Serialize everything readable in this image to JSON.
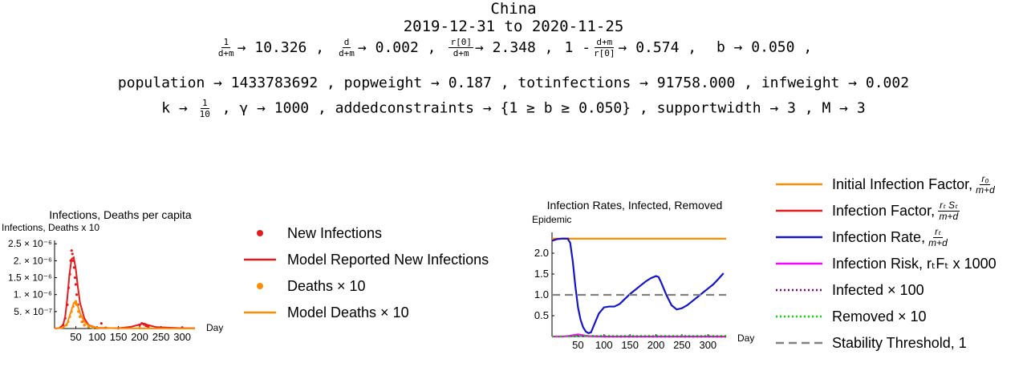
{
  "header": {
    "country": "China",
    "date_range": "2019-12-31 to 2020-11-25"
  },
  "params": {
    "line1": [
      {
        "num": "1",
        "den": "d+m",
        "val": "10.326"
      },
      {
        "num": "d",
        "den": "d+m",
        "val": "0.002"
      },
      {
        "num": "r[0]",
        "den": "d+m",
        "val": "2.348"
      },
      {
        "prefix": "1 -",
        "num": "d+m",
        "den": "r[0]",
        "val": "0.574"
      }
    ],
    "b": "b → 0.050",
    "line2": "population → 1433783692 ,  popweight → 0.187 ,  totinfections → 91758.000 ,  infweight → 0.002",
    "k_prefix": "k →",
    "k_num": "1",
    "k_den": "10",
    "line3_rest": ",  γ → 1000 ,  addedconstraints → {1 ≥ b ≥ 0.050} ,  supportwidth → 3 ,  M → 3"
  },
  "chart_data": [
    {
      "type": "scatter",
      "title": "Infections, Deaths per capita",
      "ylabel": "Infections, Deaths x 10",
      "xlabel": "Day",
      "xlim": [
        0,
        330
      ],
      "ylim": [
        0,
        2.6e-06
      ],
      "x_ticks": [
        50,
        100,
        150,
        200,
        250,
        300
      ],
      "y_ticks": [
        {
          "value": 5e-07,
          "label": "5. × 10⁻⁷"
        },
        {
          "value": 1e-06,
          "label": "1. × 10⁻⁶"
        },
        {
          "value": 1.5e-06,
          "label": "1.5 × 10⁻⁶"
        },
        {
          "value": 2e-06,
          "label": "2. × 10⁻⁶"
        },
        {
          "value": 2.5e-06,
          "label": "2.5 × 10⁻⁶"
        }
      ],
      "series": [
        {
          "name": "New Infections",
          "color": "#e41a1c",
          "kind": "points",
          "x": [
            20,
            25,
            30,
            33,
            36,
            38,
            40,
            42,
            44,
            46,
            48,
            50,
            52,
            55,
            58,
            60,
            65,
            70,
            80,
            90,
            100,
            110,
            120,
            150,
            200,
            205,
            210,
            215,
            220,
            250,
            300
          ],
          "y": [
            1e-07,
            3e-07,
            7e-07,
            1.2e-06,
            1.6e-06,
            2e-06,
            2.3e-06,
            2.2e-06,
            2e-06,
            1.8e-06,
            1.5e-06,
            1.3e-06,
            1e-06,
            7e-07,
            5e-07,
            3.5e-07,
            2e-07,
            1e-07,
            5e-08,
            2e-08,
            1e-08,
            1.5e-07,
            2e-08,
            1e-08,
            1e-07,
            1.5e-07,
            1.2e-07,
            8e-08,
            5e-08,
            2e-08,
            2e-08
          ]
        },
        {
          "name": "Model Reported New Infections",
          "color": "#e41a1c",
          "kind": "line",
          "x": [
            0,
            10,
            20,
            25,
            30,
            35,
            40,
            45,
            50,
            55,
            60,
            70,
            80,
            100,
            150,
            180,
            200,
            210,
            220,
            240,
            300,
            330
          ],
          "y": [
            0,
            1e-08,
            1e-07,
            3.5e-07,
            9e-07,
            1.6e-06,
            2.05e-06,
            2.1e-06,
            1.75e-06,
            1.2e-06,
            7.5e-07,
            3e-07,
            1e-07,
            2e-08,
            1e-08,
            5e-08,
            1.2e-07,
            1.5e-07,
            1e-07,
            4e-08,
            1e-08,
            1e-08
          ]
        },
        {
          "name": "Deaths × 10",
          "color": "#ff8c00",
          "kind": "points",
          "x": [
            28,
            32,
            36,
            40,
            44,
            48,
            50,
            52,
            56,
            60,
            64,
            70,
            80,
            90,
            100,
            200
          ],
          "y": [
            1e-07,
            2e-07,
            3.5e-07,
            5e-07,
            6.5e-07,
            7.5e-07,
            8e-07,
            7e-07,
            5e-07,
            3.5e-07,
            2e-07,
            1e-07,
            5e-08,
            2e-08,
            1e-08,
            1e-08
          ]
        },
        {
          "name": "Model Deaths × 10",
          "color": "#ff8c00",
          "kind": "line",
          "x": [
            0,
            20,
            30,
            35,
            40,
            45,
            50,
            55,
            60,
            70,
            80,
            100,
            150,
            330
          ],
          "y": [
            0,
            2e-08,
            1.5e-07,
            3.5e-07,
            5.5e-07,
            7.5e-07,
            8e-07,
            6.5e-07,
            4.5e-07,
            2e-07,
            8e-08,
            2e-08,
            5e-09,
            0.0
          ]
        }
      ],
      "legend": [
        {
          "name": "New Infections",
          "kind": "point",
          "color": "#e41a1c"
        },
        {
          "name": "Model Reported New Infections",
          "kind": "line",
          "color": "#e41a1c"
        },
        {
          "name": "Deaths × 10",
          "kind": "point",
          "color": "#ff8c00"
        },
        {
          "name": "Model Deaths × 10",
          "kind": "line",
          "color": "#ff8c00"
        }
      ]
    },
    {
      "type": "line",
      "title": "Infection Rates, Infected, Removed",
      "ylabel": "Epidemic",
      "xlabel": "Day",
      "xlim": [
        0,
        335
      ],
      "ylim": [
        0,
        2.5
      ],
      "x_ticks": [
        50,
        100,
        150,
        200,
        250,
        300
      ],
      "y_ticks": [
        0.5,
        1.0,
        1.5,
        2.0
      ],
      "series": [
        {
          "name": "Initial Infection Factor",
          "color": "#ff8c00",
          "dash": "",
          "x": [
            0,
            335
          ],
          "y": [
            2.348,
            2.348
          ]
        },
        {
          "name": "Infection Factor",
          "color": "#e41a1c",
          "dash": "",
          "x": [
            0,
            10,
            20,
            30,
            33
          ],
          "y": [
            2.3,
            2.34,
            2.35,
            2.35,
            2.35
          ]
        },
        {
          "name": "Infection Rate",
          "color": "#1414c8",
          "dash": "",
          "x": [
            0,
            10,
            20,
            30,
            35,
            40,
            45,
            50,
            55,
            60,
            65,
            70,
            75,
            80,
            90,
            100,
            110,
            120,
            130,
            140,
            150,
            160,
            170,
            180,
            190,
            200,
            205,
            210,
            220,
            230,
            240,
            250,
            260,
            270,
            280,
            290,
            300,
            310,
            320,
            330
          ],
          "y": [
            2.3,
            2.34,
            2.35,
            2.35,
            2.25,
            1.8,
            1.2,
            0.7,
            0.4,
            0.22,
            0.12,
            0.08,
            0.1,
            0.25,
            0.55,
            0.7,
            0.72,
            0.72,
            0.78,
            0.9,
            1.02,
            1.12,
            1.22,
            1.32,
            1.4,
            1.45,
            1.43,
            1.3,
            1.0,
            0.75,
            0.65,
            0.68,
            0.75,
            0.85,
            0.95,
            1.05,
            1.15,
            1.25,
            1.38,
            1.52
          ]
        },
        {
          "name": "Infection Risk",
          "color": "#ff00ff",
          "dash": "",
          "x": [
            0,
            20,
            30,
            35,
            40,
            45,
            50,
            55,
            60,
            70,
            100,
            200,
            335
          ],
          "y": [
            0.0,
            0.0,
            0.01,
            0.02,
            0.03,
            0.04,
            0.05,
            0.04,
            0.03,
            0.01,
            0.0,
            0.0,
            0.0
          ]
        },
        {
          "name": "Infected × 100",
          "color": "#800080",
          "dash": "2,3",
          "x": [
            0,
            20,
            40,
            50,
            60,
            80,
            100,
            200,
            335
          ],
          "y": [
            0.0,
            0.0,
            0.01,
            0.02,
            0.01,
            0.005,
            0.0,
            0.0,
            0.0
          ]
        },
        {
          "name": "Removed × 10",
          "color": "#00dd00",
          "dash": "2,3",
          "x": [
            0,
            30,
            50,
            70,
            100,
            200,
            335
          ],
          "y": [
            0.0,
            0.005,
            0.01,
            0.015,
            0.02,
            0.02,
            0.02
          ]
        },
        {
          "name": "Stability Threshold, 1",
          "color": "#808080",
          "dash": "10,6",
          "x": [
            0,
            335
          ],
          "y": [
            1.0,
            1.0
          ]
        }
      ],
      "legend": [
        {
          "name": "Initial Infection Factor,",
          "kind": "line",
          "color": "#ff8c00",
          "dash": "",
          "frac_num": "r₀",
          "frac_den": "m+d"
        },
        {
          "name": "Infection Factor,",
          "kind": "line",
          "color": "#e41a1c",
          "dash": "",
          "frac_num": "rₜ Sₜ",
          "frac_den": "m+d"
        },
        {
          "name": "Infection Rate,",
          "kind": "line",
          "color": "#1414c8",
          "dash": "",
          "frac_num": "rₜ",
          "frac_den": "m+d"
        },
        {
          "name": "Infection Risk, rₜFₜ x 1000",
          "kind": "line",
          "color": "#ff00ff",
          "dash": ""
        },
        {
          "name": "Infected × 100",
          "kind": "line",
          "color": "#800080",
          "dash": "2,3"
        },
        {
          "name": "Removed × 10",
          "kind": "line",
          "color": "#00dd00",
          "dash": "2,3"
        },
        {
          "name": "Stability Threshold, 1",
          "kind": "line",
          "color": "#808080",
          "dash": "10,6"
        }
      ]
    }
  ]
}
